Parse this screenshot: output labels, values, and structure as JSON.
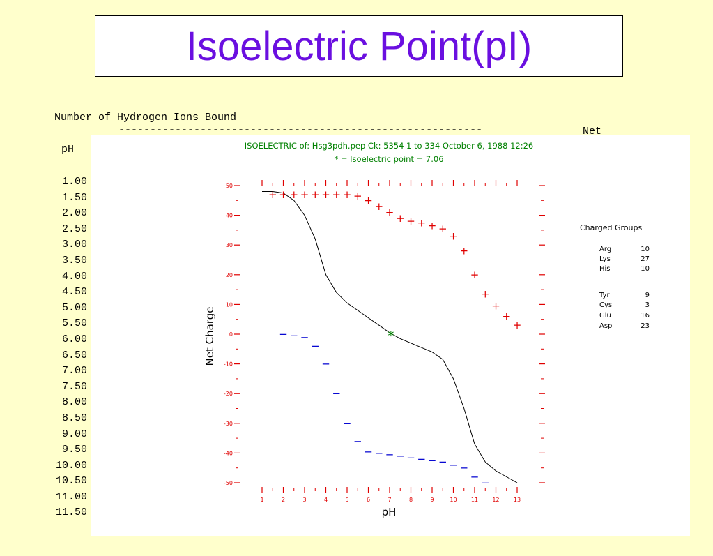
{
  "slide": {
    "title": "Isoelectric Point(pI)",
    "header_line1": "Number of Hydrogen Ions Bound",
    "dash_line": "----------------------------------------------------------",
    "net_label": "Net",
    "ph_header": "pH",
    "ph_values": [
      "1.00",
      "1.50",
      "2.00",
      "2.50",
      "3.00",
      "3.50",
      "4.00",
      "4.50",
      "5.00",
      "5.50",
      "6.00",
      "6.50",
      "7.00",
      "7.50",
      "8.00",
      "8.50",
      "9.00",
      "9.50",
      "10.00",
      "10.50",
      "11.00",
      "11.50"
    ]
  },
  "chart_data": {
    "type": "line",
    "title": "ISOELECTRIC of: Hsg3pdh.pep  Ck: 5354  1 to 334  October 6, 1988 12:26",
    "subtitle": "* = Isoelectric point = 7.06",
    "xlabel": "pH",
    "ylabel": "Net Charge",
    "xlim": [
      1,
      13
    ],
    "ylim": [
      -50,
      50
    ],
    "xticks": [
      1,
      2,
      3,
      4,
      5,
      6,
      7,
      8,
      9,
      10,
      11,
      12,
      13
    ],
    "yticks": [
      50,
      40,
      30,
      20,
      10,
      0,
      -10,
      -20,
      -30,
      -40,
      -50
    ],
    "isoelectric_point": {
      "x": 7.06,
      "y": 0,
      "marker": "*"
    },
    "series": [
      {
        "key": "net",
        "marker": "line",
        "color": "#000000",
        "x": [
          1,
          1.5,
          2,
          2.5,
          3,
          3.5,
          4,
          4.5,
          5,
          5.5,
          6,
          6.5,
          7,
          7.5,
          8,
          8.5,
          9,
          9.5,
          10,
          10.5,
          11,
          11.5,
          12,
          12.5,
          13
        ],
        "y": [
          48,
          48,
          47.5,
          45,
          40,
          32,
          20,
          14,
          10.5,
          8,
          5.5,
          3,
          0.5,
          -1.5,
          -3,
          -4.5,
          -6,
          -8.5,
          -15,
          -25,
          -37,
          -43,
          -46,
          -48,
          -50
        ]
      },
      {
        "key": "positive",
        "marker": "+",
        "color": "#e00000",
        "x": [
          1.5,
          2,
          2.5,
          3,
          3.5,
          4,
          4.5,
          5,
          5.5,
          6,
          6.5,
          7,
          7.5,
          8,
          8.5,
          9,
          9.5,
          10,
          10.5,
          11,
          11.5,
          12,
          12.5,
          13
        ],
        "y": [
          47,
          47,
          47,
          47,
          47,
          47,
          47,
          47,
          46.5,
          45,
          43,
          41,
          39,
          38,
          37.5,
          36.5,
          35.5,
          33,
          28,
          20,
          13.5,
          9.5,
          6,
          3
        ]
      },
      {
        "key": "negative",
        "marker": "−",
        "color": "#0000d0",
        "x": [
          2,
          2.5,
          3,
          3.5,
          4,
          4.5,
          5,
          5.5,
          6,
          6.5,
          7,
          7.5,
          8,
          8.5,
          9,
          9.5,
          10,
          10.5,
          11,
          11.5
        ],
        "y": [
          0,
          -0.5,
          -1,
          -4,
          -10,
          -20,
          -30,
          -36,
          -39.5,
          -40,
          -40.5,
          -41,
          -41.5,
          -42,
          -42.5,
          -43,
          -44,
          -45,
          -48,
          -50
        ]
      }
    ],
    "legend": {
      "title": "Charged Groups",
      "groups": [
        {
          "name": "Arg",
          "count": "10"
        },
        {
          "name": "Lys",
          "count": "27"
        },
        {
          "name": "His",
          "count": "10"
        },
        {
          "name": "Tyr",
          "count": "9"
        },
        {
          "name": "Cys",
          "count": "3"
        },
        {
          "name": "Glu",
          "count": "16"
        },
        {
          "name": "Asp",
          "count": "23"
        }
      ]
    },
    "colors": {
      "axis_ticks": "#e00000",
      "positive": "#e00000",
      "negative": "#0000d0",
      "title": "#008000",
      "pI_marker": "#008000",
      "line": "#000000"
    }
  }
}
